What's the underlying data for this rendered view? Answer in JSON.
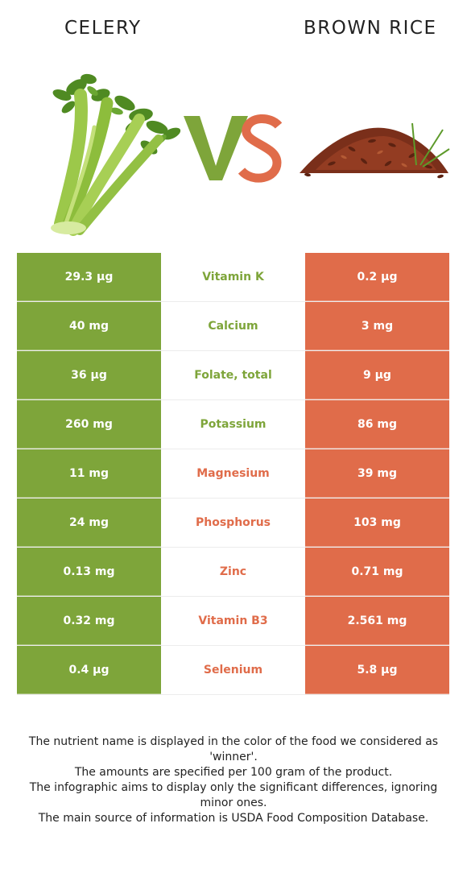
{
  "header": {
    "left_food": "CELERY",
    "right_food": "BROWN RICE",
    "vs_text": "VS"
  },
  "colors": {
    "left_food": "#7ea53a",
    "right_food": "#e06c4a",
    "vs_v": "#7ea53a",
    "vs_s": "#e06c4a"
  },
  "images": {
    "left": "celery-illustration",
    "right": "brown-rice-illustration"
  },
  "rows": [
    {
      "left": "29.3 µg",
      "nutrient": "Vitamin K",
      "right": "0.2 µg",
      "winner": "left"
    },
    {
      "left": "40 mg",
      "nutrient": "Calcium",
      "right": "3 mg",
      "winner": "left"
    },
    {
      "left": "36 µg",
      "nutrient": "Folate, total",
      "right": "9 µg",
      "winner": "left"
    },
    {
      "left": "260 mg",
      "nutrient": "Potassium",
      "right": "86 mg",
      "winner": "left"
    },
    {
      "left": "11 mg",
      "nutrient": "Magnesium",
      "right": "39 mg",
      "winner": "right"
    },
    {
      "left": "24 mg",
      "nutrient": "Phosphorus",
      "right": "103 mg",
      "winner": "right"
    },
    {
      "left": "0.13 mg",
      "nutrient": "Zinc",
      "right": "0.71 mg",
      "winner": "right"
    },
    {
      "left": "0.32 mg",
      "nutrient": "Vitamin B3",
      "right": "2.561 mg",
      "winner": "right"
    },
    {
      "left": "0.4 µg",
      "nutrient": "Selenium",
      "right": "5.8 µg",
      "winner": "right"
    }
  ],
  "footer": {
    "line1": "The nutrient name is displayed in the color of the food we considered as 'winner'.",
    "line2": "The amounts are specified per 100 gram of the product.",
    "line3": "The infographic aims to display only the significant differences, ignoring minor ones.",
    "line4": "The main source of information is USDA Food Composition Database."
  }
}
